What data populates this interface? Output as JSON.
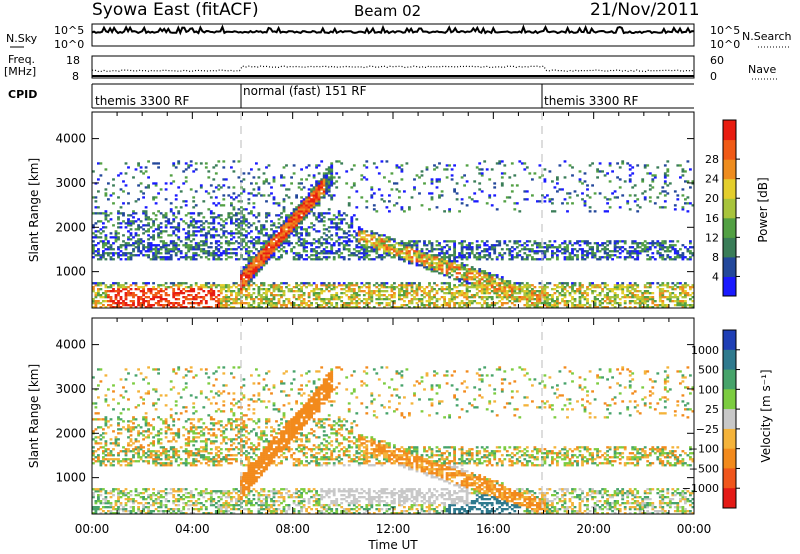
{
  "header": {
    "station": "Syowa East (fitACF)",
    "beam": "Beam 02",
    "date": "21/Nov/2011"
  },
  "noise_panel": {
    "left_label": "N.Sky",
    "left_ticks": [
      "10^5",
      "10^0"
    ],
    "right_label": "N.Search",
    "right_ticks": [
      "10^5",
      "10^0"
    ]
  },
  "freq_panel": {
    "left_label_1": "Freq.",
    "left_label_2": "[MHz]",
    "left_ticks": [
      "18",
      "8"
    ],
    "right_label": "Nave",
    "right_ticks": [
      "60",
      "0"
    ]
  },
  "cpid_panel": {
    "label": "CPID",
    "modes": [
      {
        "name": "themis 3300 RF",
        "start": 0,
        "end": 6
      },
      {
        "name": "normal (fast) 151 RF",
        "start": 6,
        "end": 18
      },
      {
        "name": "themis 3300 RF",
        "start": 18,
        "end": 24
      }
    ]
  },
  "chart_data": [
    {
      "type": "heatmap",
      "name": "Power",
      "ylabel": "Slant Range [km]",
      "ylim": [
        180,
        4600
      ],
      "yticks": [
        1000,
        2000,
        3000,
        4000
      ],
      "xlim": [
        0,
        24
      ],
      "colorbar": {
        "label": "Power [dB]",
        "ticks": [
          "4",
          "8",
          "12",
          "16",
          "20",
          "24",
          "28"
        ],
        "colors": [
          "#1a1aff",
          "#23489b",
          "#3a7d58",
          "#52a043",
          "#a8c43c",
          "#e4ce2c",
          "#ee8c1e",
          "#f05a16",
          "#e81c10"
        ]
      }
    },
    {
      "type": "heatmap",
      "name": "Velocity",
      "ylabel": "Slant Range [km]",
      "ylim": [
        180,
        4600
      ],
      "yticks": [
        1000,
        2000,
        3000,
        4000
      ],
      "xlim": [
        0,
        24
      ],
      "xlabel": "Time UT",
      "xticks": [
        "00:00",
        "04:00",
        "08:00",
        "12:00",
        "16:00",
        "20:00",
        "00:00"
      ],
      "colorbar": {
        "label": "Velocity  [m s⁻¹]",
        "ticks": [
          "1000",
          "500",
          "100",
          "25",
          "−25",
          "−100",
          "−500",
          "−1000"
        ],
        "colors": [
          "#1f3fb5",
          "#2f7a8e",
          "#46a36a",
          "#7ccc40",
          "#c8c8c8",
          "#f4b33a",
          "#f28a1c",
          "#f0561c",
          "#e41a16"
        ]
      }
    }
  ]
}
